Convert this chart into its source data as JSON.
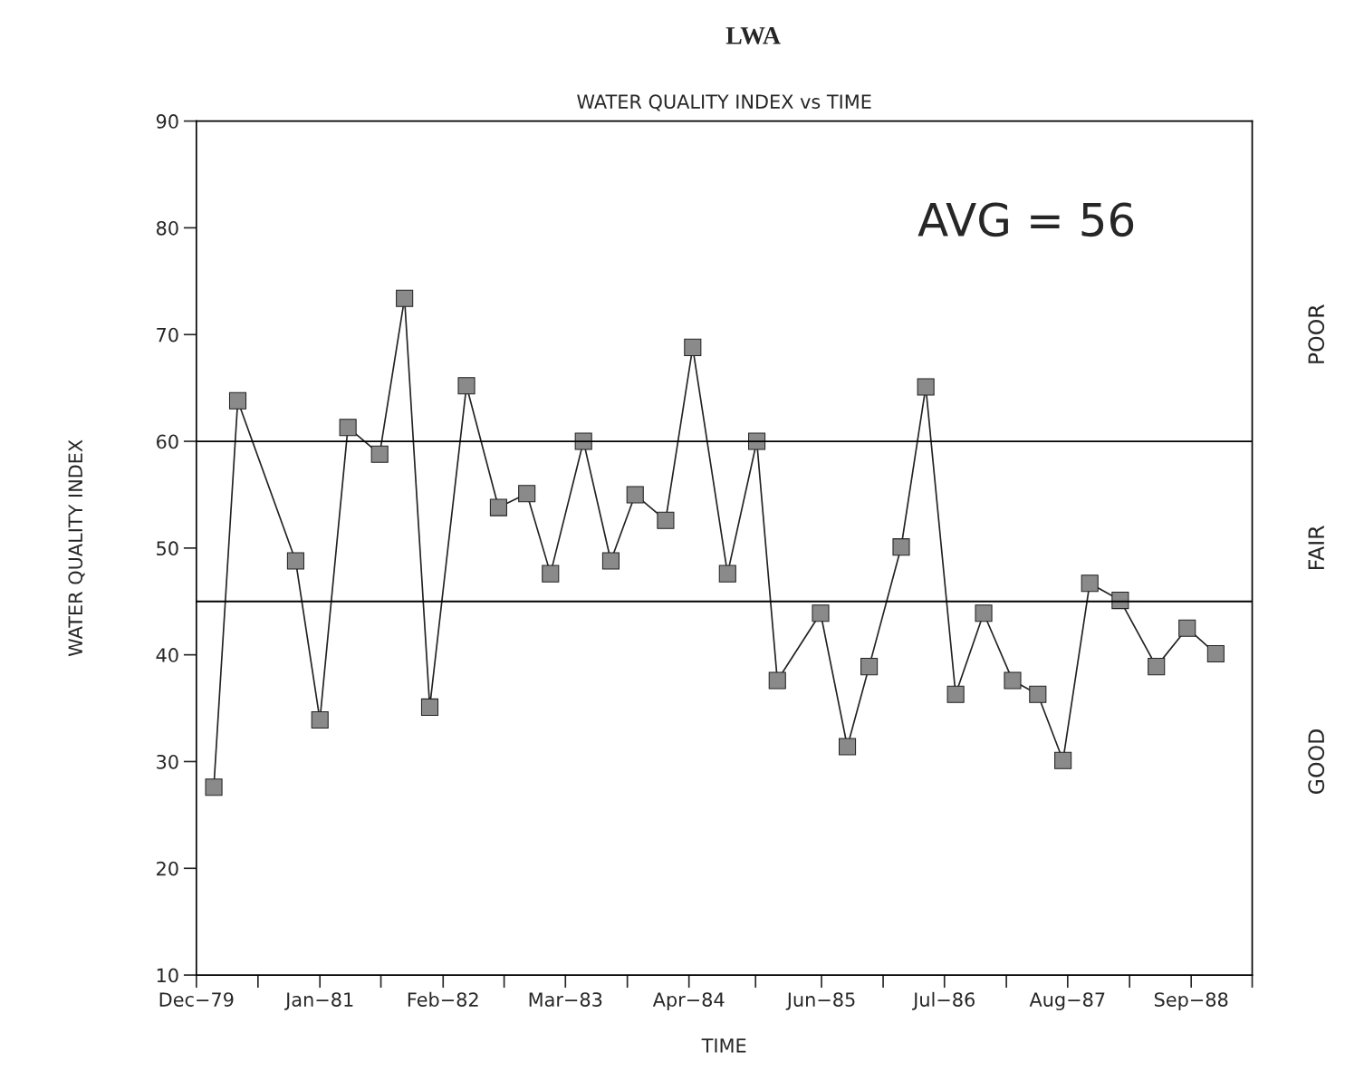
{
  "chart_data": {
    "type": "line",
    "title": "LWA",
    "subtitle": "WATER QUALITY INDEX vs TIME",
    "xlabel": "TIME",
    "ylabel": "WATER QUALITY INDEX",
    "x": [
      "1980-01-26",
      "1980-04-12",
      "1980-10-15",
      "1981-01-01",
      "1981-04-01",
      "1981-07-12",
      "1981-09-30",
      "1981-12-20",
      "1982-04-17",
      "1982-07-29",
      "1982-10-28",
      "1983-01-12",
      "1983-04-28",
      "1983-07-25",
      "1983-10-11",
      "1984-01-17",
      "1984-04-13",
      "1984-08-03",
      "1984-11-05",
      "1985-01-10",
      "1985-05-29",
      "1985-08-23",
      "1985-11-01",
      "1986-02-12",
      "1986-05-02",
      "1986-08-06",
      "1986-11-04",
      "1987-02-05",
      "1987-04-27",
      "1987-07-17",
      "1987-10-11",
      "1988-01-17",
      "1988-05-12",
      "1988-08-19",
      "1988-11-19"
    ],
    "series": [
      {
        "color": "#222222",
        "values": [
          27.6,
          63.8,
          48.8,
          33.9,
          61.3,
          58.8,
          73.4,
          35.1,
          65.2,
          53.8,
          55.1,
          47.6,
          60.0,
          48.8,
          55.0,
          52.6,
          68.8,
          47.6,
          60.0,
          37.6,
          43.9,
          31.4,
          38.9,
          50.1,
          65.1,
          36.3,
          43.9,
          37.6,
          36.3,
          30.1,
          46.7,
          45.1,
          38.9,
          42.5,
          40.1
        ]
      }
    ],
    "xlim": [
      "1979-12-01",
      "1989-03-16"
    ],
    "xticks": [
      {
        "value": "1979-12-01",
        "label": "Dec−79"
      },
      {
        "value": "1980-06-16",
        "label": null
      },
      {
        "value": "1981-01-01",
        "label": "Jan−81"
      },
      {
        "value": "1981-07-16",
        "label": null
      },
      {
        "value": "1982-02-01",
        "label": "Feb−82"
      },
      {
        "value": "1982-08-16",
        "label": null
      },
      {
        "value": "1983-03-01",
        "label": "Mar−83"
      },
      {
        "value": "1983-09-16",
        "label": null
      },
      {
        "value": "1984-04-01",
        "label": "Apr−84"
      },
      {
        "value": "1984-11-01",
        "label": null
      },
      {
        "value": "1985-06-01",
        "label": "Jun−85"
      },
      {
        "value": "1985-12-16",
        "label": null
      },
      {
        "value": "1986-07-01",
        "label": "Jul−86"
      },
      {
        "value": "1987-01-16",
        "label": null
      },
      {
        "value": "1987-08-01",
        "label": "Aug−87"
      },
      {
        "value": "1988-02-16",
        "label": null
      },
      {
        "value": "1988-09-01",
        "label": "Sep−88"
      },
      {
        "value": "1989-03-16",
        "label": null
      }
    ],
    "ylim": [
      10,
      90
    ],
    "yticks": [
      10,
      20,
      30,
      40,
      50,
      60,
      70,
      80,
      90
    ],
    "ref_lines": [
      {
        "axis": "y",
        "value": 60,
        "color": "#000000"
      },
      {
        "axis": "y",
        "value": 45,
        "color": "#000000"
      }
    ],
    "annotations": [
      "AVG = 56",
      "POOR",
      "FAIR",
      "GOOD"
    ],
    "marker": "square",
    "line_style": "solid",
    "grid": false,
    "legend": false
  }
}
